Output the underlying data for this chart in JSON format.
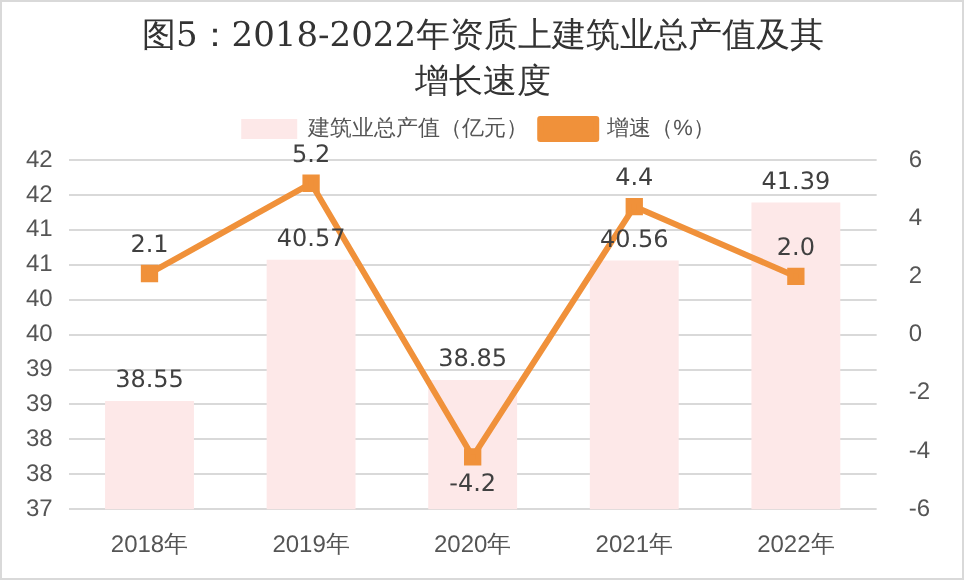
{
  "chart_data": {
    "type": "bar",
    "title": "图5：2018-2022年资质上建筑业总产值及其增长速度",
    "categories": [
      "2018年",
      "2019年",
      "2020年",
      "2021年",
      "2022年"
    ],
    "series": [
      {
        "name": "建筑业总产值（亿元）",
        "color": "#fde8e8",
        "values": [
          38.55,
          40.57,
          38.85,
          40.56,
          41.39
        ],
        "value_labels": [
          "38.55",
          "40.57",
          "38.85",
          "40.56",
          "41.39"
        ]
      },
      {
        "name": "增速（%）",
        "type": "line",
        "axis": "y2",
        "color": "#f0913a",
        "values": [
          2.1,
          5.2,
          -4.2,
          4.4,
          2.0
        ],
        "value_labels": [
          "2.1",
          "5.2",
          "-4.2",
          "4.4",
          "2.0"
        ]
      }
    ],
    "ylim": [
      37,
      42
    ],
    "yticks": [
      37,
      {
        "value": 37.5,
        "label": "38"
      },
      38,
      {
        "value": 38.5,
        "label": "39"
      },
      39,
      {
        "value": 39.5,
        "label": "40"
      },
      40,
      {
        "value": 40.5,
        "label": "41"
      },
      41,
      {
        "value": 41.5,
        "label": "42"
      },
      42
    ],
    "y2lim": [
      -6,
      6
    ],
    "y2ticks": [
      -6,
      -4,
      -2,
      0,
      2,
      4,
      6
    ],
    "grid": "y",
    "legend": "top",
    "marker": "square",
    "line_style": "solid"
  }
}
